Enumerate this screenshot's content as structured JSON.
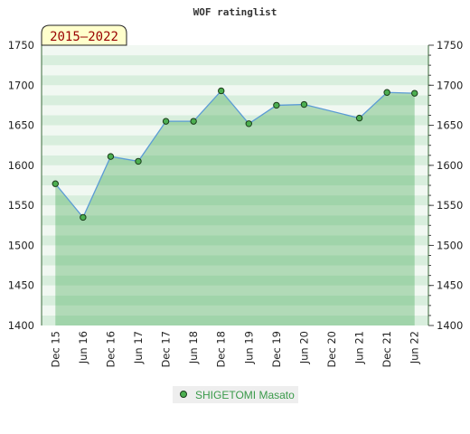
{
  "chart_data": {
    "type": "area",
    "title": "WOF ratinglist",
    "period_badge": "2015–2022",
    "xlabel": "",
    "ylabel": "",
    "ylim": [
      1400,
      1750
    ],
    "yticks": [
      1400,
      1450,
      1500,
      1550,
      1600,
      1650,
      1700,
      1750
    ],
    "y_axis_both_sides": true,
    "grid": true,
    "legend_position": "bottom-center",
    "categories": [
      "Dec 15",
      "Jun 16",
      "Dec 16",
      "Jun 17",
      "Dec 17",
      "Jun 18",
      "Dec 18",
      "Jun 19",
      "Dec 19",
      "Jun 20",
      "Dec 20",
      "Jun 21",
      "Dec 21",
      "Jun 22"
    ],
    "series": [
      {
        "name": "SHIGETOMI Masato",
        "points": [
          {
            "x": "Dec 15",
            "y": 1577
          },
          {
            "x": "Jun 16",
            "y": 1535
          },
          {
            "x": "Dec 16",
            "y": 1611
          },
          {
            "x": "Jun 17",
            "y": 1605
          },
          {
            "x": "Dec 17",
            "y": 1655
          },
          {
            "x": "Jun 18",
            "y": 1655
          },
          {
            "x": "Dec 18",
            "y": 1693
          },
          {
            "x": "Jun 19",
            "y": 1652
          },
          {
            "x": "Dec 19",
            "y": 1675
          },
          {
            "x": "Jun 20",
            "y": 1676
          },
          {
            "x": "Jun 21",
            "y": 1659
          },
          {
            "x": "Dec 21",
            "y": 1691
          },
          {
            "x": "Jun 22",
            "y": 1690
          }
        ]
      }
    ],
    "colors": {
      "line": "#5b9bd5",
      "marker_fill": "#4caf50",
      "marker_stroke": "#1b3d1b",
      "area_fill": "#3aa34a",
      "legend_bg": "#eeeeee",
      "legend_text": "#3a9a4a",
      "badge_bg": "#ffffcc",
      "badge_text": "#990000"
    }
  }
}
